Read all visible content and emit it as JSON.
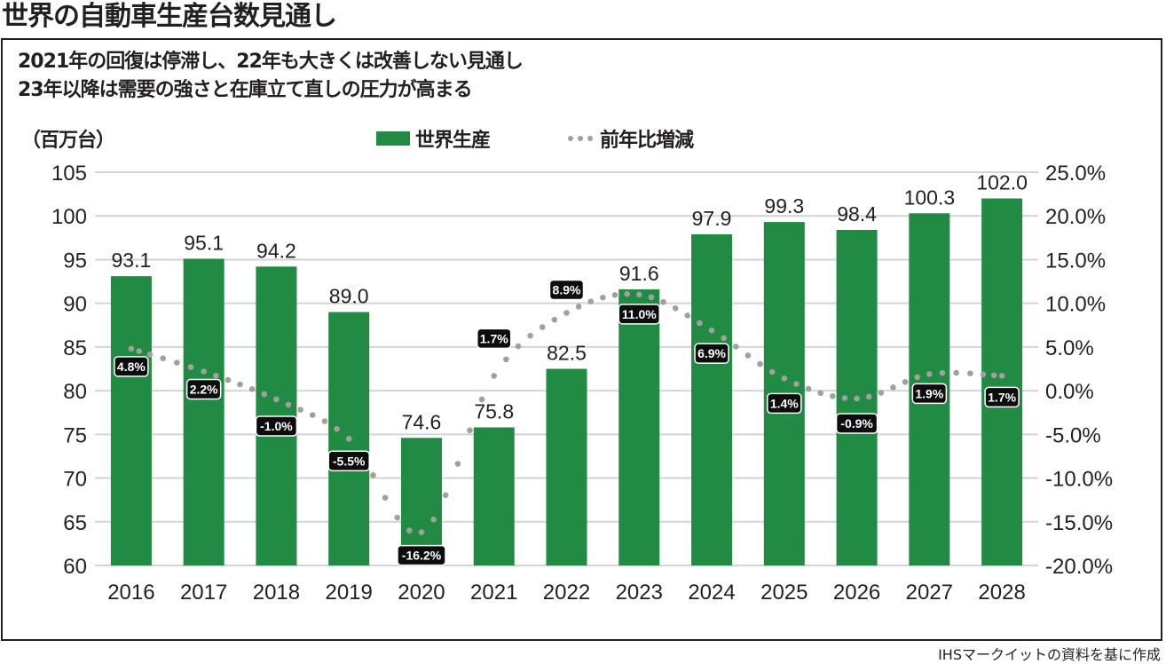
{
  "header": {
    "title": "世界の自動車生産台数見通し",
    "subtitle_lines": [
      "2021年の回復は停滞し、22年も大きくは改善しない見通し",
      "23年以降は需要の強さと在庫立て直しの圧力が高まる"
    ]
  },
  "source_note": "IHSマークイットの資料を基に作成",
  "chart_data": {
    "type": "bar",
    "title": "世界の自動車生産台数見通し",
    "ylabel": "（百万台）",
    "ylabel_right": "",
    "xlabel": "",
    "categories": [
      "2016",
      "2017",
      "2018",
      "2019",
      "2020",
      "2021",
      "2022",
      "2023",
      "2024",
      "2025",
      "2026",
      "2027",
      "2028"
    ],
    "series": [
      {
        "name": "世界生産",
        "type": "bar",
        "axis": "left",
        "color": "#218a43",
        "values": [
          93.1,
          95.1,
          94.2,
          89.0,
          74.6,
          75.8,
          82.5,
          91.6,
          97.9,
          99.3,
          98.4,
          100.3,
          102.0
        ],
        "labels": [
          "93.1",
          "95.1",
          "94.2",
          "89.0",
          "74.6",
          "75.8",
          "82.5",
          "91.6",
          "97.9",
          "99.3",
          "98.4",
          "100.3",
          "102.0"
        ]
      },
      {
        "name": "前年比増減",
        "type": "line",
        "style": "dotted",
        "axis": "right",
        "color": "#a0a0a0",
        "values": [
          4.8,
          2.2,
          -1.0,
          -5.5,
          -16.2,
          1.7,
          8.9,
          11.0,
          6.9,
          1.4,
          -0.9,
          1.9,
          1.7
        ],
        "labels": [
          "4.8%",
          "2.2%",
          "-1.0%",
          "-5.5%",
          "-16.2%",
          "1.7%",
          "8.9%",
          "11.0%",
          "6.9%",
          "1.4%",
          "-0.9%",
          "1.9%",
          "1.7%"
        ]
      }
    ],
    "ylim": [
      60,
      105
    ],
    "yticks": [
      "105",
      "100",
      "95",
      "90",
      "85",
      "80",
      "75",
      "70",
      "65",
      "60"
    ],
    "ylim_right": [
      -20,
      25
    ],
    "yticks_right": [
      "25.0%",
      "20.0%",
      "15.0%",
      "10.0%",
      "5.0%",
      "0.0%",
      "-5.0%",
      "-10.0%",
      "-15.0%",
      "-20.0%"
    ],
    "grid": true,
    "legend": {
      "position": "top-center",
      "entries": [
        "世界生産",
        "前年比増減"
      ]
    }
  }
}
